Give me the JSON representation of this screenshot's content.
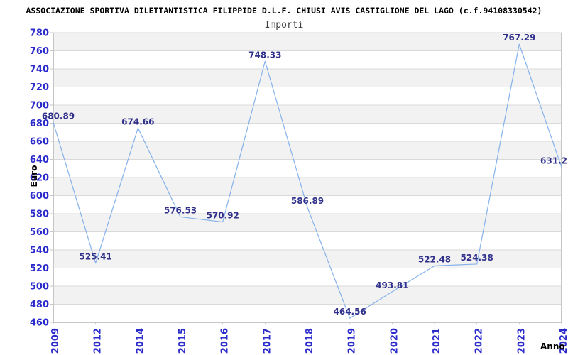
{
  "chart_data": {
    "type": "line",
    "title": "ASSOCIAZIONE SPORTIVA DILETTANTISTICA FILIPPIDE D.L.F. CHIUSI AVIS CASTIGLIONE DEL LAGO (c.f.94108330542)",
    "subtitle": "Importi",
    "xlabel": "Anno",
    "ylabel": "Euro",
    "categories": [
      "2009",
      "2012",
      "2014",
      "2015",
      "2016",
      "2017",
      "2018",
      "2019",
      "2020",
      "2021",
      "2022",
      "2023",
      "2024"
    ],
    "values": [
      680.89,
      525.41,
      674.66,
      576.53,
      570.92,
      748.33,
      586.89,
      464.56,
      493.81,
      522.48,
      524.38,
      767.29,
      631.2
    ],
    "point_labels": [
      "680.89",
      "525.41",
      "674.66",
      "576.53",
      "570.92",
      "748.33",
      "586.89",
      "464.56",
      "493.81",
      "522.48",
      "524.38",
      "767.29",
      "631.2"
    ],
    "ylim": [
      460,
      780
    ],
    "ytick_step": 20,
    "grid": "horizontal-only",
    "legend": "none",
    "band_fill": "alternating gray bands between gridlines, topmost band (760-780) gray",
    "colors": {
      "line": "#85b2ea",
      "band": "#f2f2f2",
      "gridline": "#d9d9d9",
      "border": "#c6c6c6",
      "ytick": "#2b2bcc",
      "xtick": "#2b2bcc",
      "data_label": "#31318c",
      "title": "#000000",
      "subtitle": "#3f3f3f",
      "axis_title": "#000000",
      "background": "#ffffff"
    }
  }
}
